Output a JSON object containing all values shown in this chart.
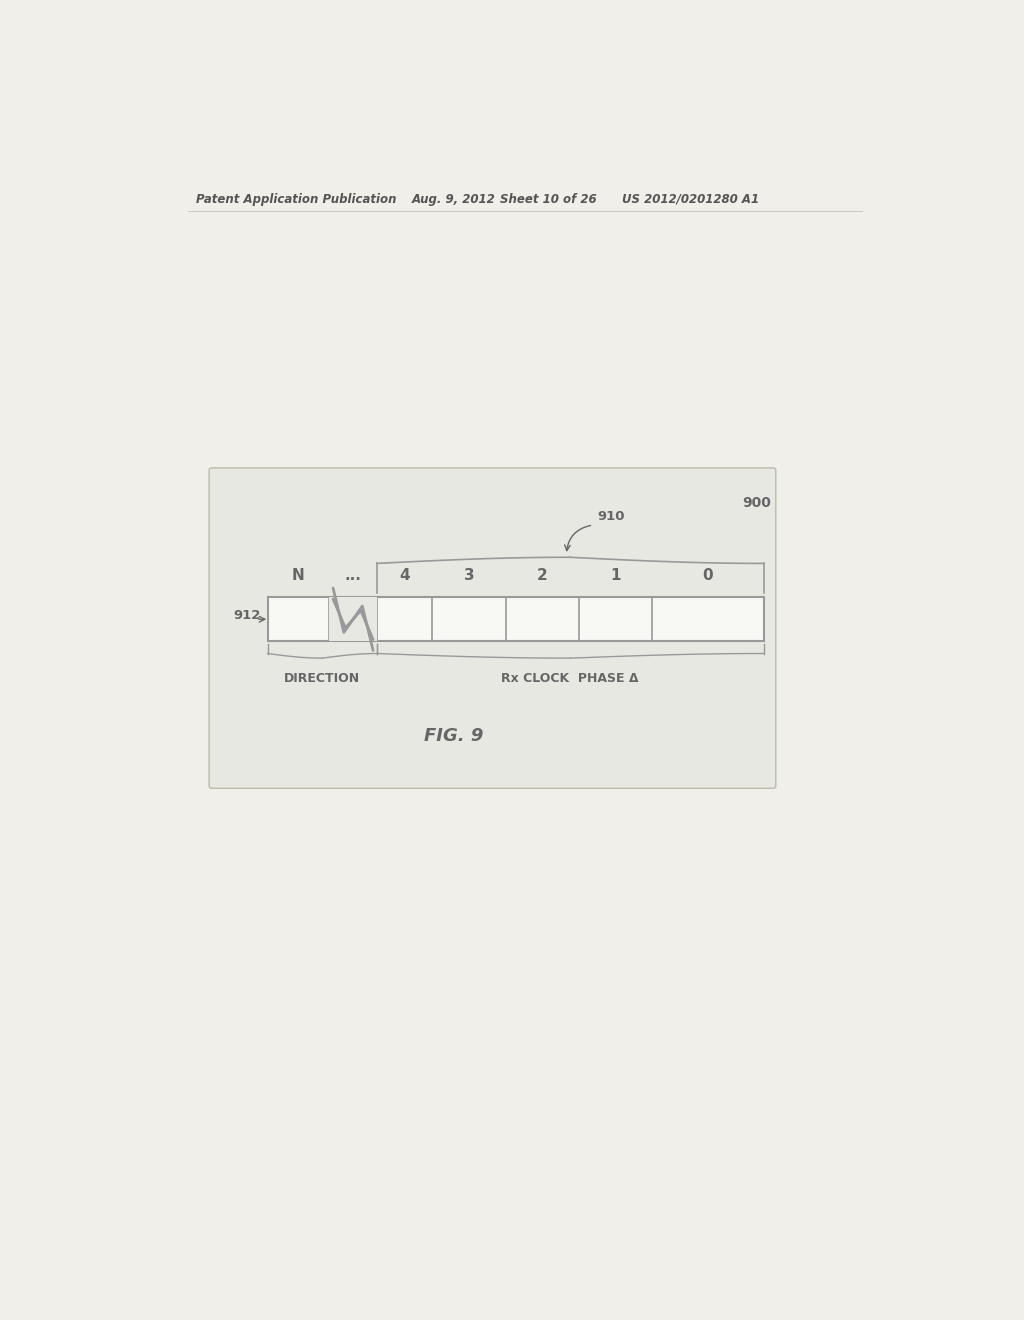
{
  "page_bg": "#f0efea",
  "diagram_bg": "#e8e8e3",
  "header_text": "Patent Application Publication",
  "header_date": "Aug. 9, 2012",
  "header_sheet": "Sheet 10 of 26",
  "header_patent": "US 2012/0201280 A1",
  "fig_label": "FIG. 9",
  "ref_900": "900",
  "ref_910": "910",
  "ref_912": "912",
  "label_N": "N",
  "label_dots": "...",
  "label_4": "4",
  "label_3": "3",
  "label_2": "2",
  "label_1": "1",
  "label_0": "0",
  "direction_label": "DIRECTION",
  "rx_label": "Rx CLOCK  PHASE Δ",
  "text_color": "#666666",
  "box_color": "#999999",
  "cell_bg": "#f8f8f5",
  "header_color": "#555555"
}
